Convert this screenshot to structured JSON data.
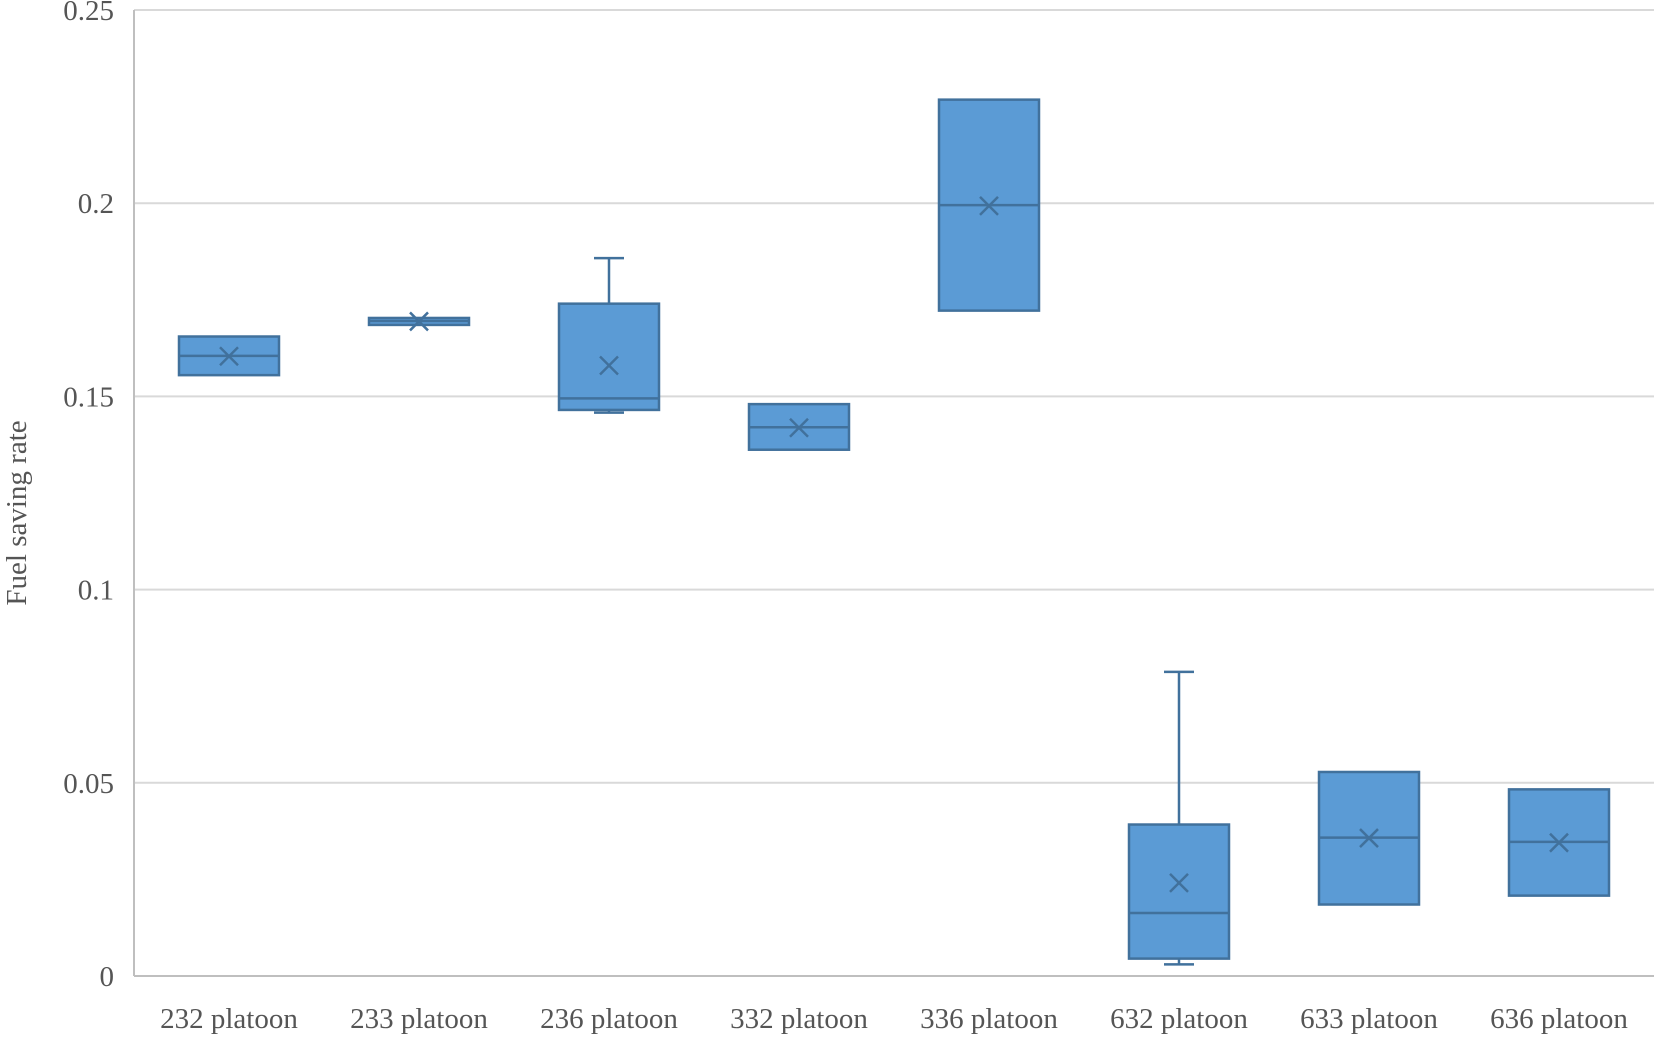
{
  "chart_data": {
    "type": "box",
    "title": "",
    "xlabel": "",
    "ylabel": "Fuel saving rate",
    "ylim": [
      0,
      0.25
    ],
    "yticks": [
      0,
      0.05,
      0.1,
      0.15,
      0.2,
      0.25
    ],
    "ytick_labels": [
      "0",
      "0.05",
      "0.1",
      "0.15",
      "0.2",
      "0.25"
    ],
    "grid": "horizontal",
    "legend": "none",
    "colors": {
      "box_fill": "#5b9bd5",
      "box_stroke": "#41719c",
      "grid": "#d9d9d9",
      "axis": "#bfbfbf",
      "text": "#595959"
    },
    "categories": [
      "232 platoon",
      "233 platoon",
      "236 platoon",
      "332 platoon",
      "336 platoon",
      "632 platoon",
      "633 platoon",
      "636 platoon"
    ],
    "boxes": [
      {
        "min": 0.1555,
        "q1": 0.1555,
        "median": 0.1605,
        "q3": 0.1655,
        "max": 0.1655,
        "mean": 0.1604
      },
      {
        "min": 0.1685,
        "q1": 0.1685,
        "median": 0.1695,
        "q3": 0.1703,
        "max": 0.1703,
        "mean": 0.1694
      },
      {
        "min": 0.1458,
        "q1": 0.1465,
        "median": 0.1495,
        "q3": 0.174,
        "max": 0.1858,
        "mean": 0.158
      },
      {
        "min": 0.1362,
        "q1": 0.1362,
        "median": 0.142,
        "q3": 0.148,
        "max": 0.148,
        "mean": 0.1419
      },
      {
        "min": 0.1722,
        "q1": 0.1722,
        "median": 0.1995,
        "q3": 0.2268,
        "max": 0.2268,
        "mean": 0.1993
      },
      {
        "min": 0.003,
        "q1": 0.0045,
        "median": 0.0163,
        "q3": 0.0392,
        "max": 0.0787,
        "mean": 0.0241
      },
      {
        "min": 0.0185,
        "q1": 0.0185,
        "median": 0.0358,
        "q3": 0.0528,
        "max": 0.0528,
        "mean": 0.0357
      },
      {
        "min": 0.0208,
        "q1": 0.0208,
        "median": 0.0347,
        "q3": 0.0483,
        "max": 0.0483,
        "mean": 0.0345
      }
    ]
  }
}
